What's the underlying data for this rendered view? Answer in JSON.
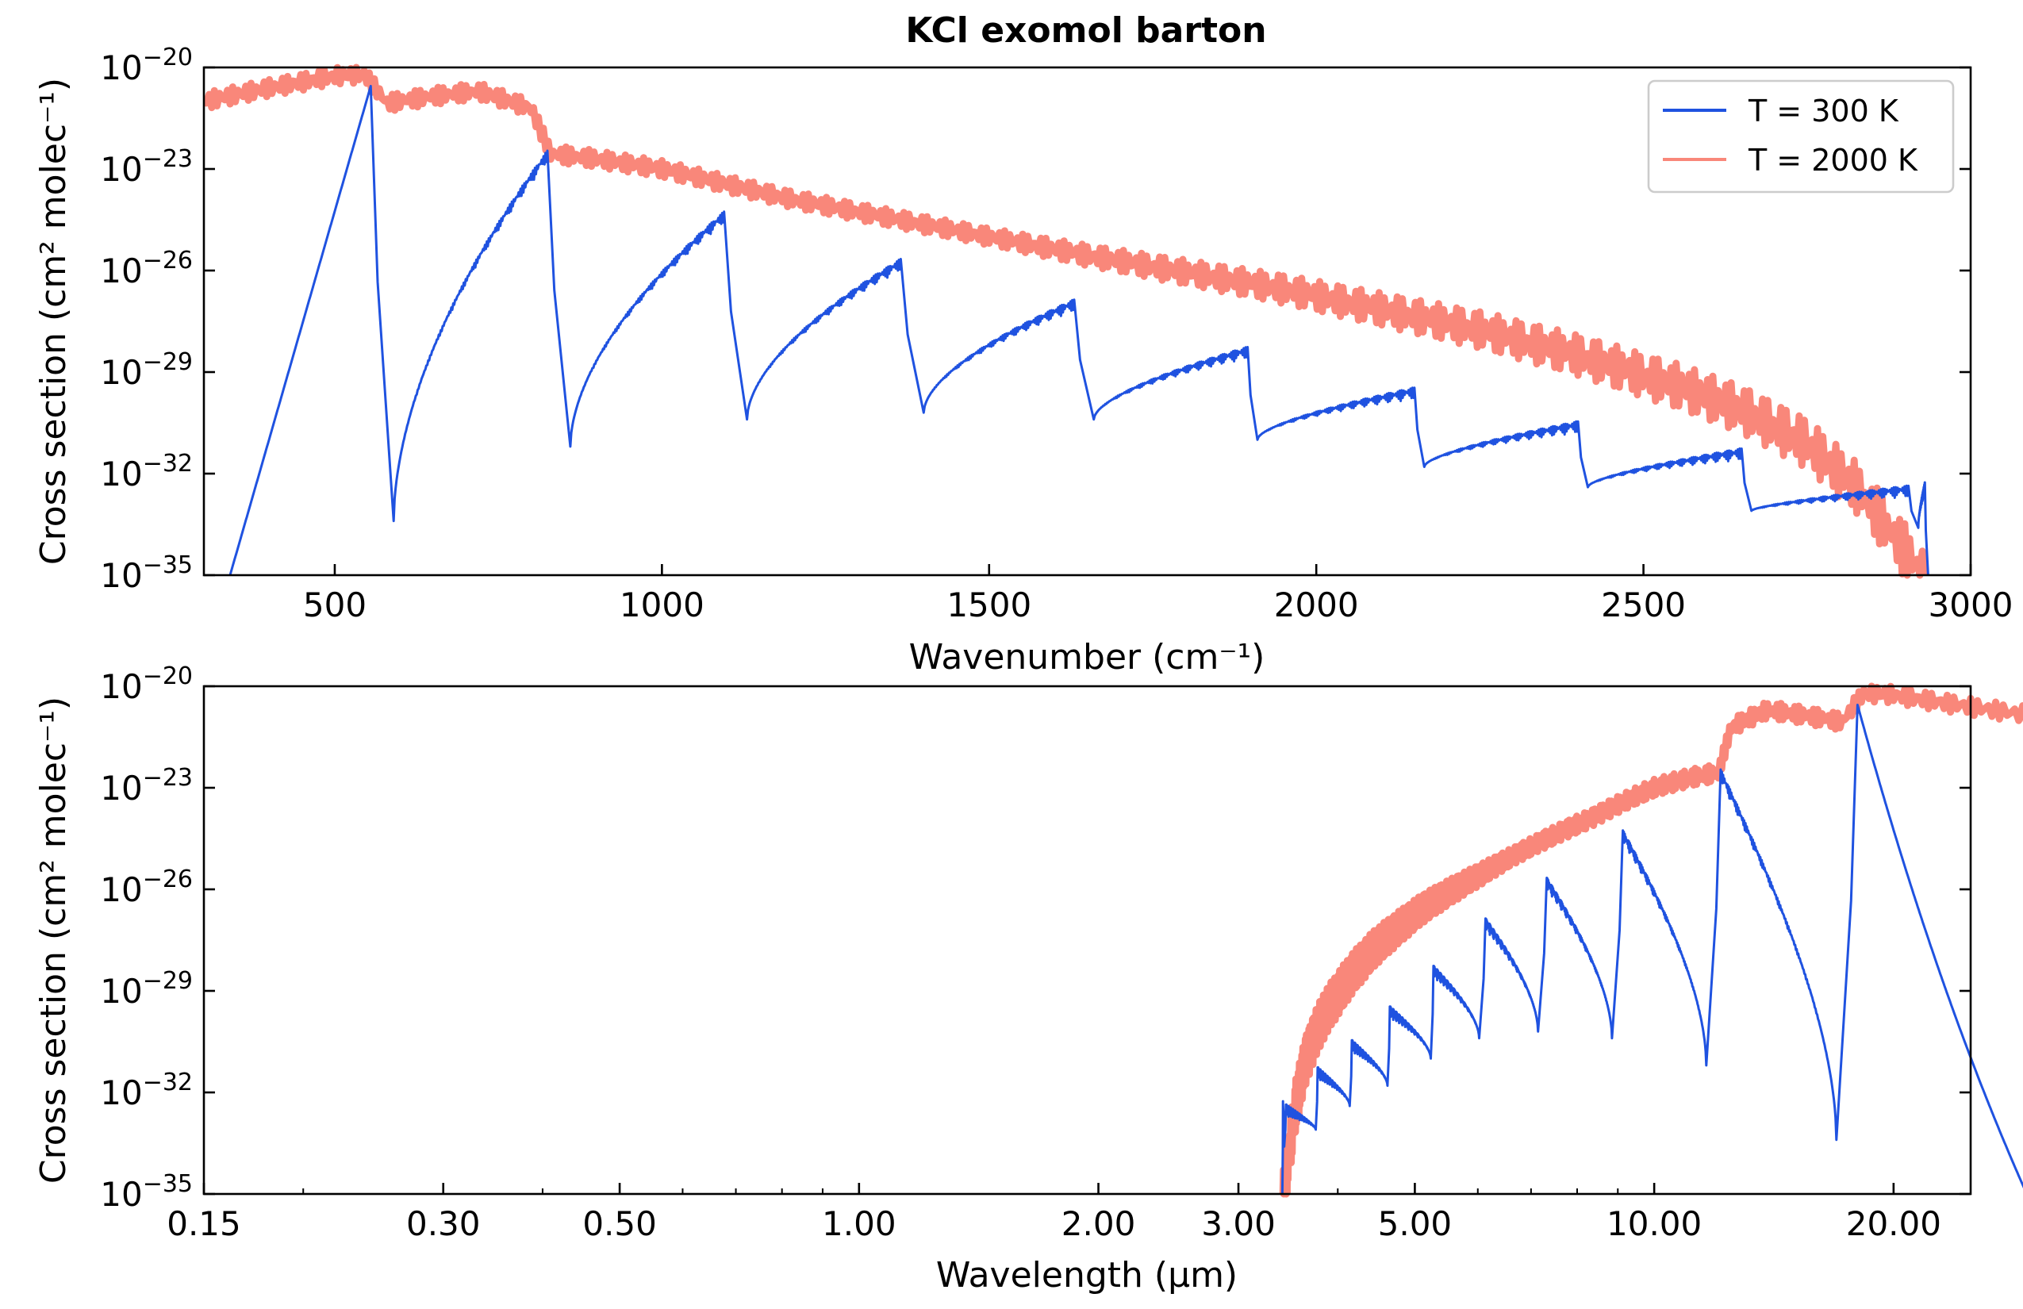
{
  "title": "KCl exomol barton",
  "colors": {
    "t300": "#1f52e0",
    "t2000": "#f9877a"
  },
  "chart_data": [
    {
      "type": "line",
      "xlabel": "Wavenumber (cm⁻¹)",
      "ylabel": "Cross section (cm² molec⁻¹)",
      "xlim": [
        300,
        3000
      ],
      "ylim_exp": [
        -35,
        -20
      ],
      "yscale": "log",
      "xticks": [
        {
          "v": 500,
          "label": "500"
        },
        {
          "v": 1000,
          "label": "1000"
        },
        {
          "v": 1500,
          "label": "1500"
        },
        {
          "v": 2000,
          "label": "2000"
        },
        {
          "v": 2500,
          "label": "2500"
        },
        {
          "v": 3000,
          "label": "3000"
        }
      ],
      "yticks": [
        {
          "e": -20,
          "base": "10",
          "exp": "−20"
        },
        {
          "e": -23,
          "base": "10",
          "exp": "−23"
        },
        {
          "e": -26,
          "base": "10",
          "exp": "−26"
        },
        {
          "e": -29,
          "base": "10",
          "exp": "−29"
        },
        {
          "e": -32,
          "base": "10",
          "exp": "−32"
        },
        {
          "e": -35,
          "base": "10",
          "exp": "−35"
        }
      ],
      "legend": {
        "position": "top-right",
        "entries": [
          {
            "label": "T = 300 K",
            "series": "t300"
          },
          {
            "label": "T = 2000 K",
            "series": "t2000"
          }
        ]
      },
      "series": [
        {
          "id": "t300",
          "name": "T = 300 K",
          "bands": [
            {
              "start": 340,
              "start_y": -35.0,
              "peak": 555,
              "peak_y": -20.55,
              "drop": 590,
              "drop_y": -33.4
            },
            {
              "start": 590,
              "start_y": -33.4,
              "peak": 825,
              "peak_y": -22.8,
              "drop": 860,
              "drop_y": -31.2
            },
            {
              "start": 860,
              "start_y": -31.2,
              "peak": 1095,
              "peak_y": -24.6,
              "drop": 1130,
              "drop_y": -30.4
            },
            {
              "start": 1130,
              "start_y": -30.4,
              "peak": 1365,
              "peak_y": -26.0,
              "drop": 1400,
              "drop_y": -30.2
            },
            {
              "start": 1400,
              "start_y": -30.2,
              "peak": 1630,
              "peak_y": -27.2,
              "drop": 1660,
              "drop_y": -30.4
            },
            {
              "start": 1660,
              "start_y": -30.4,
              "peak": 1895,
              "peak_y": -28.6,
              "drop": 1910,
              "drop_y": -31.0
            },
            {
              "start": 1910,
              "start_y": -31.0,
              "peak": 2150,
              "peak_y": -29.8,
              "drop": 2165,
              "drop_y": -31.8
            },
            {
              "start": 2165,
              "start_y": -31.8,
              "peak": 2400,
              "peak_y": -30.8,
              "drop": 2415,
              "drop_y": -32.4
            },
            {
              "start": 2415,
              "start_y": -32.4,
              "peak": 2650,
              "peak_y": -31.6,
              "drop": 2665,
              "drop_y": -33.1
            },
            {
              "start": 2665,
              "start_y": -33.1,
              "peak": 2905,
              "peak_y": -32.7,
              "drop": 2920,
              "drop_y": -33.6
            },
            {
              "start": 2920,
              "start_y": -33.6,
              "peak": 2930,
              "peak_y": -32.6,
              "drop": 2935,
              "drop_y": -35.0
            }
          ]
        },
        {
          "id": "t2000",
          "name": "T = 2000 K",
          "points": [
            [
              300,
              -21.0
            ],
            [
              400,
              -20.6
            ],
            [
              500,
              -20.25
            ],
            [
              545,
              -20.2
            ],
            [
              580,
              -21.05
            ],
            [
              650,
              -20.85
            ],
            [
              720,
              -20.7
            ],
            [
              800,
              -21.2
            ],
            [
              830,
              -22.55
            ],
            [
              900,
              -22.7
            ],
            [
              1000,
              -23.0
            ],
            [
              1100,
              -23.45
            ],
            [
              1200,
              -23.9
            ],
            [
              1350,
              -24.45
            ],
            [
              1500,
              -25.0
            ],
            [
              1650,
              -25.55
            ],
            [
              1800,
              -26.05
            ],
            [
              1950,
              -26.55
            ],
            [
              2100,
              -27.15
            ],
            [
              2250,
              -27.75
            ],
            [
              2400,
              -28.5
            ],
            [
              2550,
              -29.4
            ],
            [
              2650,
              -30.1
            ],
            [
              2750,
              -31.1
            ],
            [
              2830,
              -32.5
            ],
            [
              2880,
              -33.8
            ],
            [
              2930,
              -35.0
            ]
          ]
        }
      ]
    },
    {
      "type": "line",
      "xlabel": "Wavelength (µm)",
      "ylabel": "Cross section (cm² molec⁻¹)",
      "xlim": [
        0.15,
        25.0
      ],
      "xscale": "log",
      "yscale": "log",
      "ylim_exp": [
        -35,
        -20
      ],
      "xticks": [
        {
          "v": 0.15,
          "label": "0.15"
        },
        {
          "v": 0.3,
          "label": "0.30"
        },
        {
          "v": 0.5,
          "label": "0.50"
        },
        {
          "v": 1.0,
          "label": "1.00"
        },
        {
          "v": 2.0,
          "label": "2.00"
        },
        {
          "v": 3.0,
          "label": "3.00"
        },
        {
          "v": 5.0,
          "label": "5.00"
        },
        {
          "v": 10.0,
          "label": "10.00"
        },
        {
          "v": 20.0,
          "label": "20.00"
        }
      ],
      "yticks": [
        {
          "e": -20,
          "base": "10",
          "exp": "−20"
        },
        {
          "e": -23,
          "base": "10",
          "exp": "−23"
        },
        {
          "e": -26,
          "base": "10",
          "exp": "−26"
        },
        {
          "e": -29,
          "base": "10",
          "exp": "−29"
        },
        {
          "e": -32,
          "base": "10",
          "exp": "−32"
        },
        {
          "e": -35,
          "base": "10",
          "exp": "−35"
        }
      ],
      "series": [
        {
          "id": "t300",
          "name": "T = 300 K",
          "from_wavenumber_of": 0
        },
        {
          "id": "t2000",
          "name": "T = 2000 K",
          "from_wavenumber_of": 0
        }
      ]
    }
  ]
}
